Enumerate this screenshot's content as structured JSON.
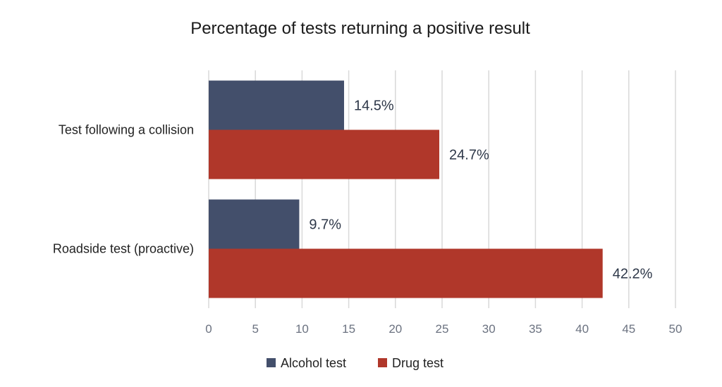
{
  "chart_data": {
    "type": "bar",
    "orientation": "horizontal",
    "title": "Percentage of tests returning a positive result",
    "categories": [
      "Test following a collision",
      "Roadside test (proactive)"
    ],
    "series": [
      {
        "name": "Alcohol test",
        "color": "#434f6b",
        "values": [
          14.5,
          9.7
        ],
        "labels": [
          "14.5%",
          "9.7%"
        ]
      },
      {
        "name": "Drug test",
        "color": "#b0372a",
        "values": [
          24.7,
          42.2
        ],
        "labels": [
          "24.7%",
          "42.2%"
        ]
      }
    ],
    "xlim": [
      0,
      50
    ],
    "xticks": [
      "0",
      "5",
      "10",
      "15",
      "20",
      "25",
      "30",
      "35",
      "40",
      "45",
      "50"
    ],
    "grid": true,
    "legend_position": "bottom"
  }
}
